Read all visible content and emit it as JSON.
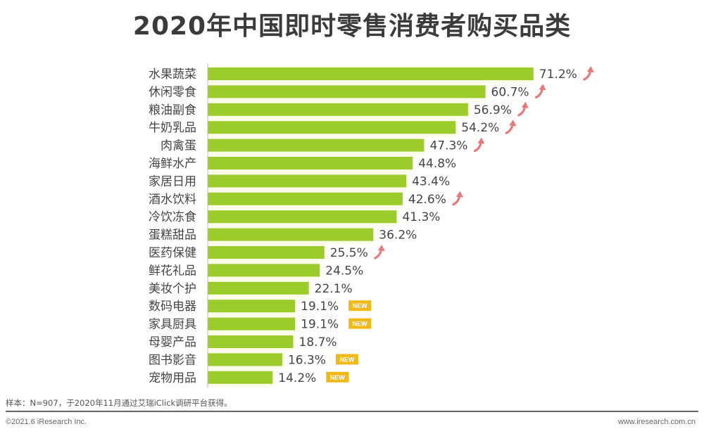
{
  "chart_data": {
    "type": "bar",
    "orientation": "horizontal",
    "title": "2020年中国即时零售消费者购买品类",
    "xlabel": "",
    "ylabel": "",
    "xlim": [
      0,
      75
    ],
    "grid": false,
    "legend": null,
    "categories": [
      "水果蔬菜",
      "休闲零食",
      "粮油副食",
      "牛奶乳品",
      "肉禽蛋",
      "海鲜水产",
      "家居日用",
      "酒水饮料",
      "冷饮冻食",
      "蛋糕甜品",
      "医药保健",
      "鲜花礼品",
      "美妆个护",
      "数码电器",
      "家具厨具",
      "母婴产品",
      "图书影音",
      "宠物用品"
    ],
    "values": [
      71.2,
      60.7,
      56.9,
      54.2,
      47.3,
      44.8,
      43.4,
      42.6,
      41.3,
      36.2,
      25.5,
      24.5,
      22.1,
      19.1,
      19.1,
      18.7,
      16.3,
      14.2
    ],
    "value_labels": [
      "71.2%",
      "60.7%",
      "56.9%",
      "54.2%",
      "47.3%",
      "44.8%",
      "43.4%",
      "42.6%",
      "41.3%",
      "36.2%",
      "25.5%",
      "24.5%",
      "22.1%",
      "19.1%",
      "19.1%",
      "18.7%",
      "16.3%",
      "14.2%"
    ],
    "markers": [
      "up",
      "up",
      "up",
      "up",
      "up",
      "",
      "",
      "up",
      "",
      "",
      "up",
      "",
      "",
      "new",
      "new",
      "",
      "new",
      "new"
    ],
    "marker_legend": {
      "up": "rising-arrow",
      "new": "NEW"
    },
    "new_label": "NEW",
    "colors": {
      "bar": "#9ccc2c",
      "bar_stripe": "#fbfbe8",
      "arrow": "#e8787a",
      "new_badge": "#f2b818",
      "text": "#444444"
    }
  },
  "footer": {
    "note": "样本：N=907，于2020年11月通过艾瑞iClick调研平台获得。",
    "copyright": "©2021.6 iResearch Inc.",
    "website": "www.iresearch.com.cn"
  }
}
